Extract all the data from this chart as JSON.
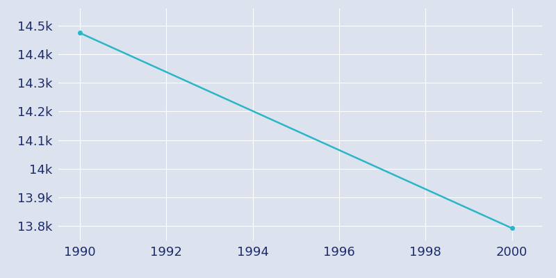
{
  "x": [
    1990,
    2000
  ],
  "y": [
    14474,
    13793
  ],
  "line_color": "#29b6c8",
  "line_width": 1.8,
  "background_color": "#dde3ee",
  "grid_color": "#ffffff",
  "text_color": "#1b2a6b",
  "xlim": [
    1989.5,
    2000.7
  ],
  "ylim": [
    13750,
    14560
  ],
  "xticks": [
    1990,
    1992,
    1994,
    1996,
    1998,
    2000
  ],
  "yticks": [
    13800,
    13900,
    14000,
    14100,
    14200,
    14300,
    14400,
    14500
  ],
  "ytick_labels": [
    "13.8k",
    "13.9k",
    "14k",
    "14.1k",
    "14.2k",
    "14.3k",
    "14.4k",
    "14.5k"
  ],
  "xtick_labels": [
    "1990",
    "1992",
    "1994",
    "1996",
    "1998",
    "2000"
  ],
  "tick_fontsize": 13,
  "marker": "o",
  "marker_size": 4
}
